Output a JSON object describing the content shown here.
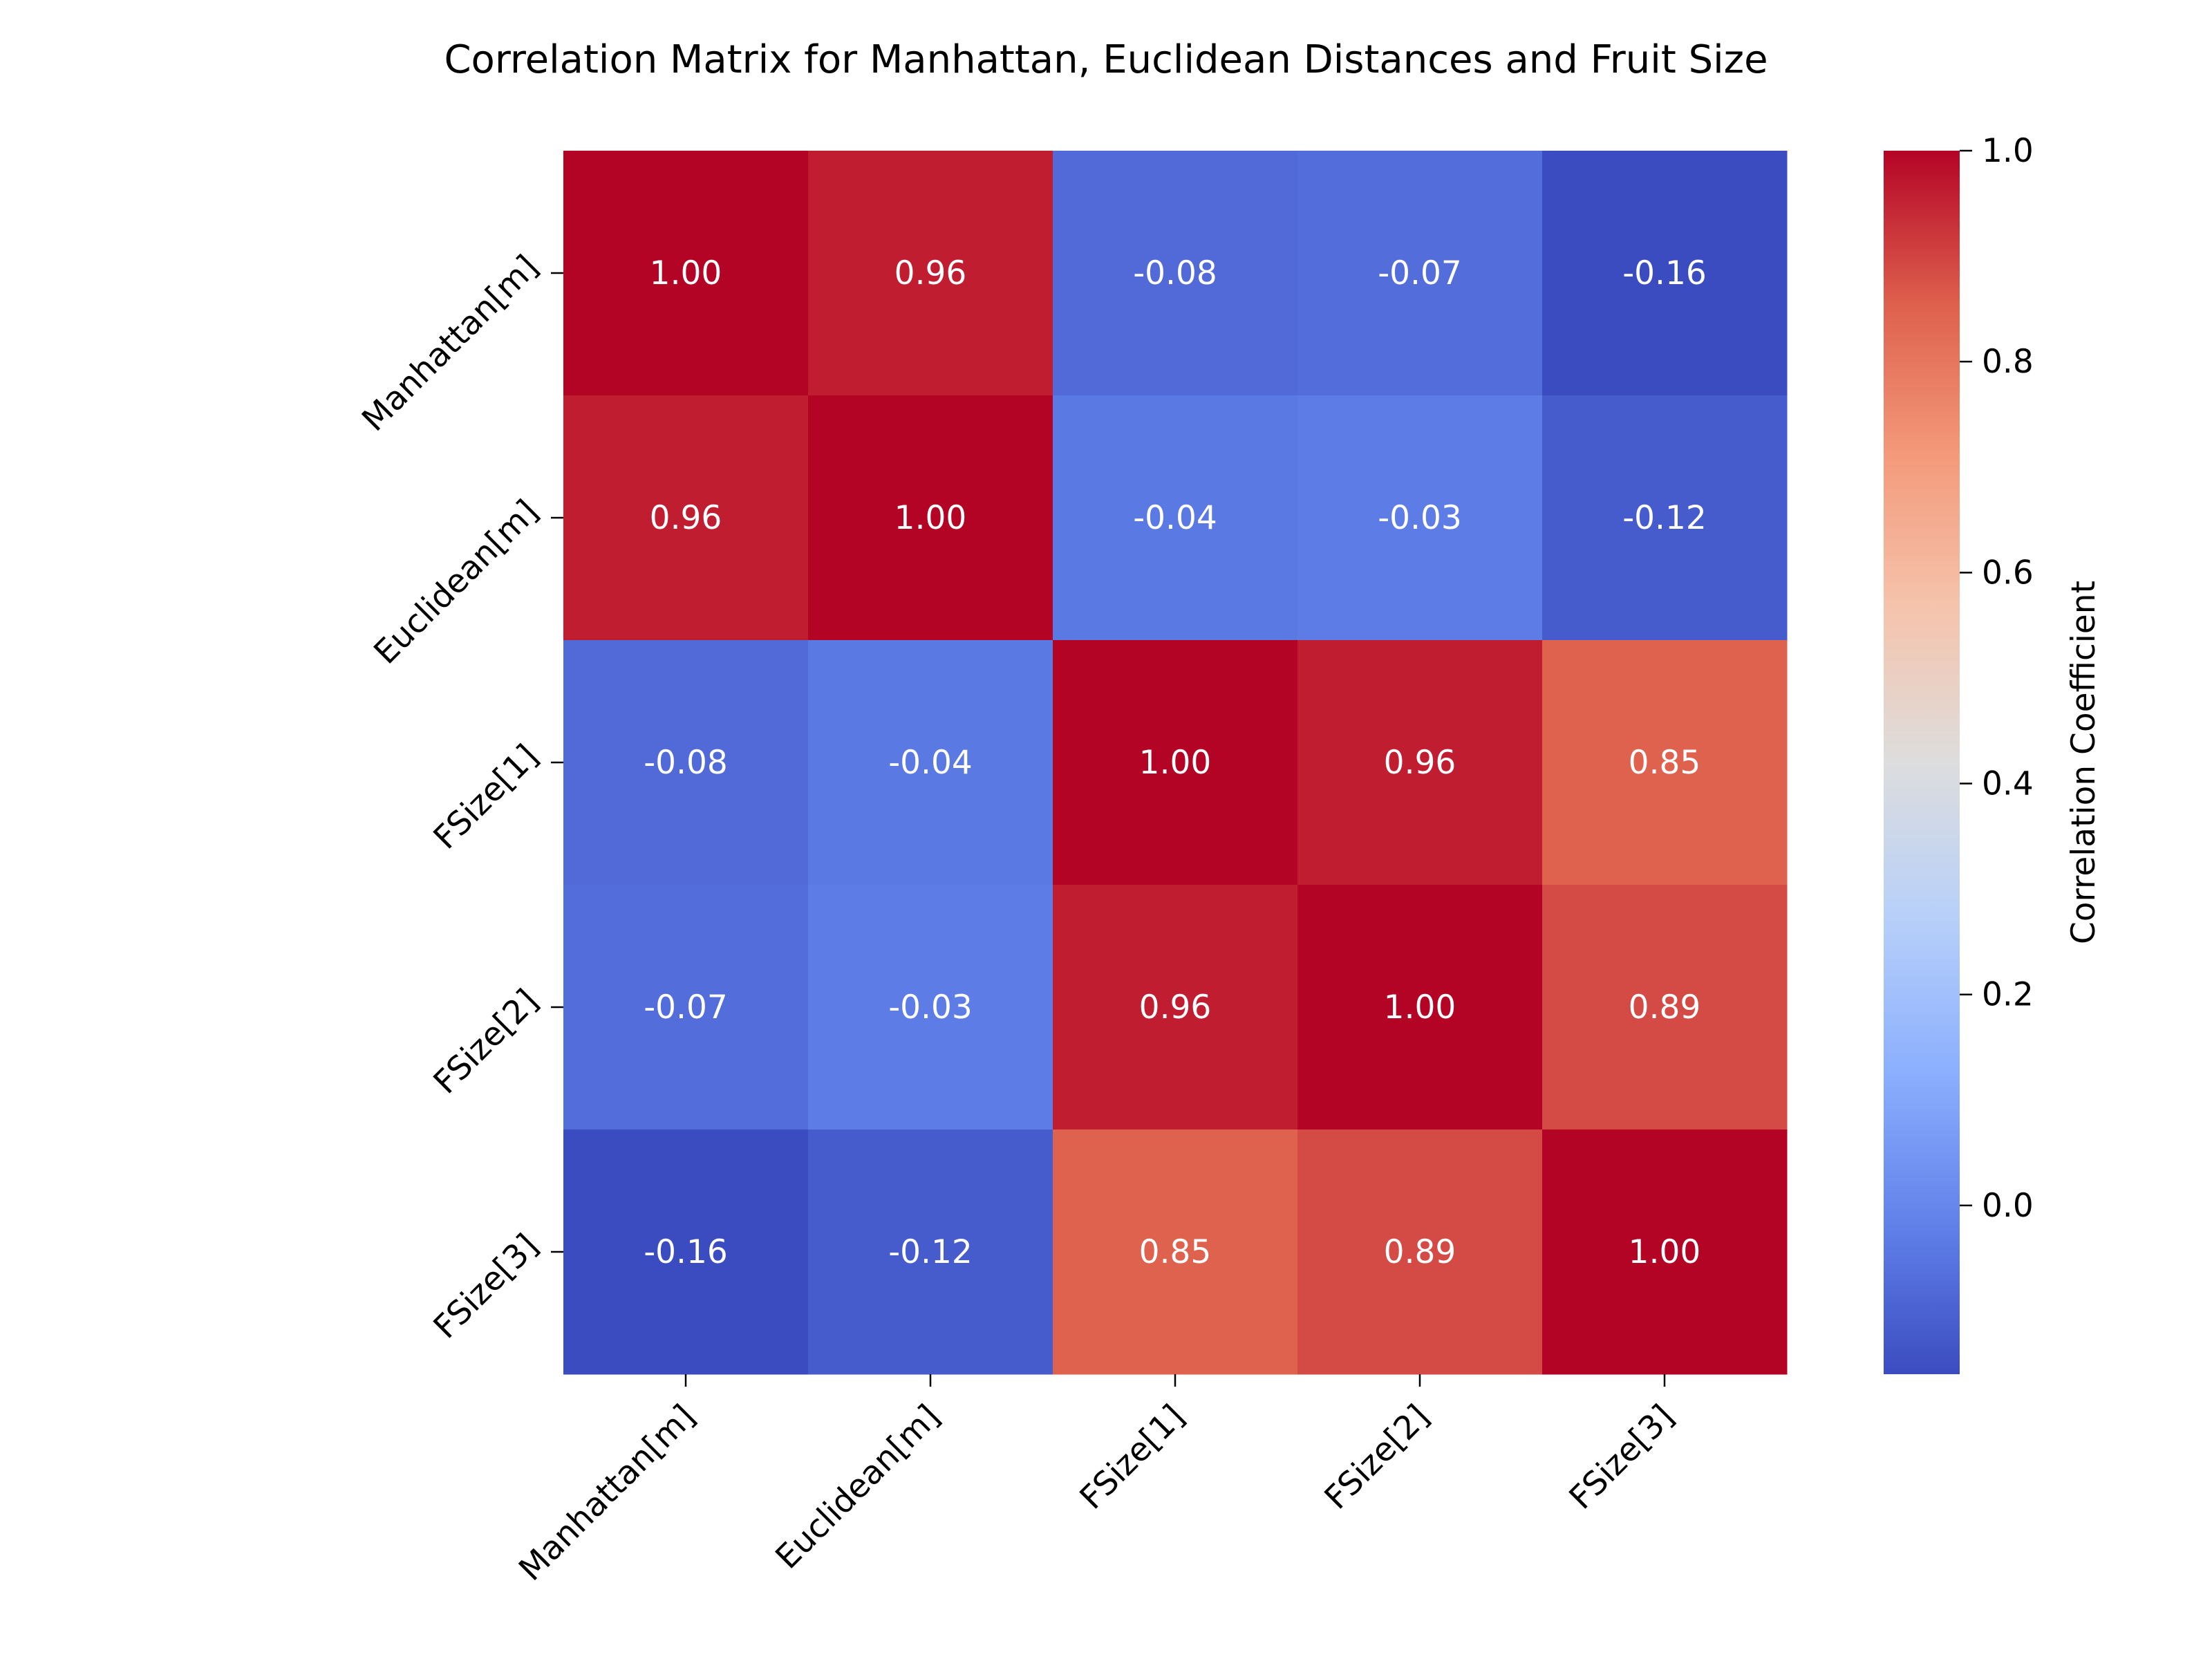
{
  "chart_data": {
    "type": "heatmap",
    "title": "Correlation Matrix for Manhattan, Euclidean Distances and Fruit Size",
    "rows": [
      "Manhattan[m]",
      "Euclidean[m]",
      "FSize[1]",
      "FSize[2]",
      "FSize[3]"
    ],
    "columns": [
      "Manhattan[m]",
      "Euclidean[m]",
      "FSize[1]",
      "FSize[2]",
      "FSize[3]"
    ],
    "values": [
      [
        1.0,
        0.96,
        -0.08,
        -0.07,
        -0.16
      ],
      [
        0.96,
        1.0,
        -0.04,
        -0.03,
        -0.12
      ],
      [
        -0.08,
        -0.04,
        1.0,
        0.96,
        0.85
      ],
      [
        -0.07,
        -0.03,
        0.96,
        1.0,
        0.89
      ],
      [
        -0.16,
        -0.12,
        0.85,
        0.89,
        1.0
      ]
    ],
    "value_format": "2 decimals",
    "colormap": "coolwarm",
    "colorbar": {
      "label": "Correlation Coefficient",
      "range": [
        -0.16,
        1.0
      ],
      "ticks": [
        0.0,
        0.2,
        0.4,
        0.6,
        0.8,
        1.0
      ],
      "tick_labels": [
        "0.0",
        "0.2",
        "0.4",
        "0.6",
        "0.8",
        "1.0"
      ]
    }
  }
}
